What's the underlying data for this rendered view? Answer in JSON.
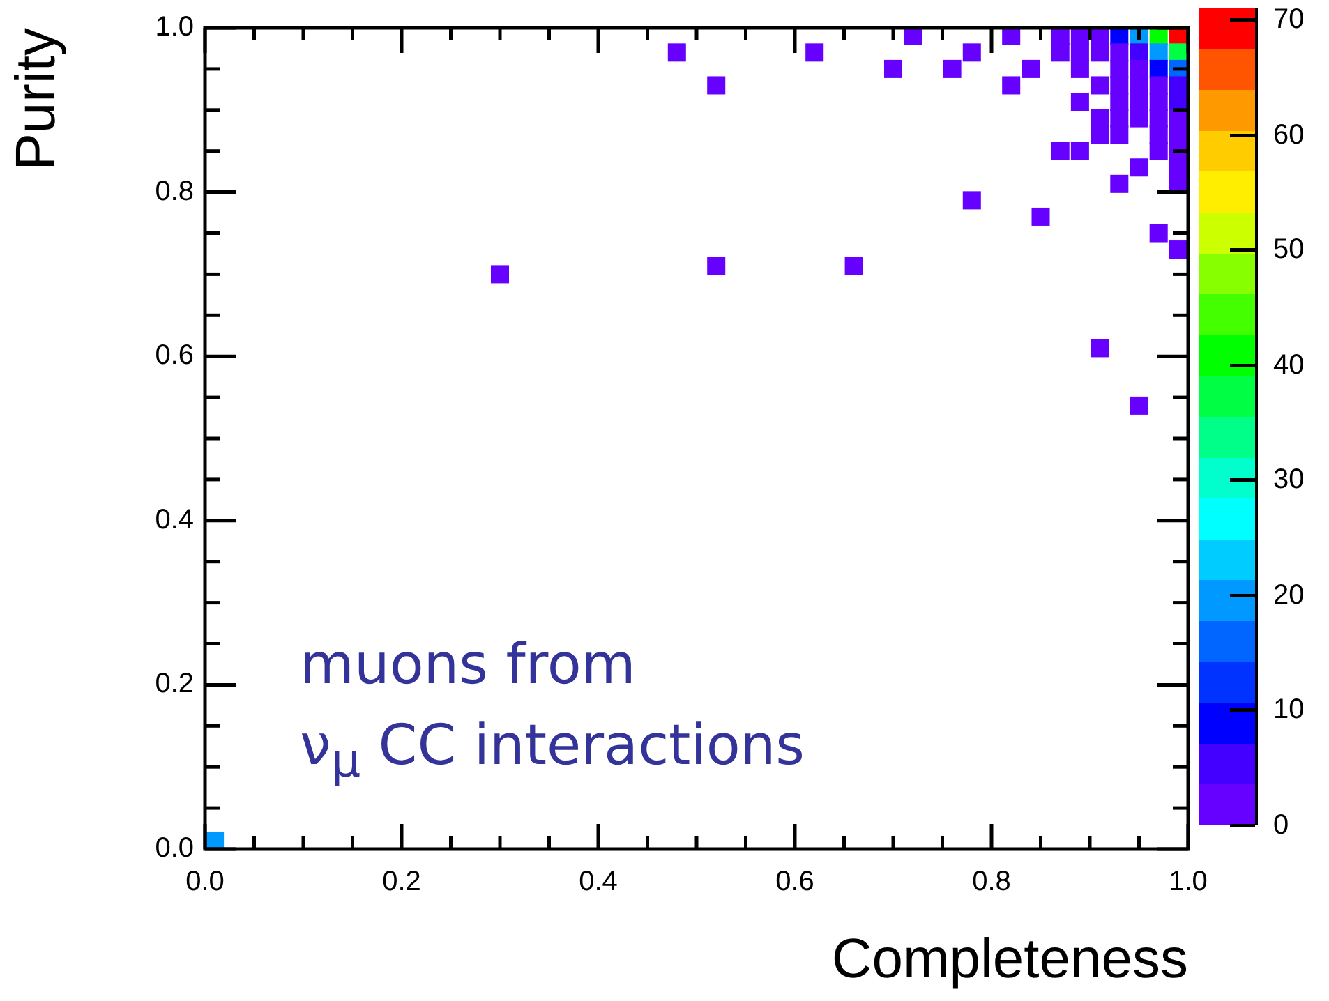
{
  "chart_data": {
    "type": "scatter",
    "xlabel": "Completeness",
    "ylabel": "Purity",
    "clabel": null,
    "annotations": [
      "muons from\nν$_{μ}$ CC interactions"
    ],
    "marker": "square",
    "legend": false,
    "grid": false,
    "xlim": [
      0,
      1
    ],
    "ylim": [
      0,
      1
    ],
    "xticks": [
      {
        "value": 0,
        "label": "0.0"
      },
      {
        "value": 0.05,
        "label": null
      },
      {
        "value": 0.1,
        "label": null
      },
      {
        "value": 0.15,
        "label": null
      },
      {
        "value": 0.2,
        "label": "0.2"
      },
      {
        "value": 0.25,
        "label": null
      },
      {
        "value": 0.3,
        "label": null
      },
      {
        "value": 0.35,
        "label": null
      },
      {
        "value": 0.4,
        "label": "0.4"
      },
      {
        "value": 0.45,
        "label": null
      },
      {
        "value": 0.5,
        "label": null
      },
      {
        "value": 0.55,
        "label": null
      },
      {
        "value": 0.6,
        "label": "0.6"
      },
      {
        "value": 0.65,
        "label": null
      },
      {
        "value": 0.7,
        "label": null
      },
      {
        "value": 0.75,
        "label": null
      },
      {
        "value": 0.8,
        "label": "0.8"
      },
      {
        "value": 0.85,
        "label": null
      },
      {
        "value": 0.9,
        "label": null
      },
      {
        "value": 0.95,
        "label": null
      },
      {
        "value": 1,
        "label": "1.0"
      }
    ],
    "yticks": [
      {
        "value": 0,
        "label": "0.0"
      },
      {
        "value": 0.05,
        "label": null
      },
      {
        "value": 0.1,
        "label": null
      },
      {
        "value": 0.15,
        "label": null
      },
      {
        "value": 0.2,
        "label": "0.2"
      },
      {
        "value": 0.25,
        "label": null
      },
      {
        "value": 0.3,
        "label": null
      },
      {
        "value": 0.35,
        "label": null
      },
      {
        "value": 0.4,
        "label": "0.4"
      },
      {
        "value": 0.45,
        "label": null
      },
      {
        "value": 0.5,
        "label": null
      },
      {
        "value": 0.55,
        "label": null
      },
      {
        "value": 0.6,
        "label": "0.6"
      },
      {
        "value": 0.65,
        "label": null
      },
      {
        "value": 0.7,
        "label": null
      },
      {
        "value": 0.75,
        "label": null
      },
      {
        "value": 0.8,
        "label": "0.8"
      },
      {
        "value": 0.85,
        "label": null
      },
      {
        "value": 0.9,
        "label": null
      },
      {
        "value": 0.95,
        "label": null
      },
      {
        "value": 1,
        "label": "1.0"
      }
    ],
    "clim": [
      0,
      71
    ],
    "cticks": [
      0,
      10,
      20,
      30,
      40,
      50,
      60,
      70
    ],
    "x": [
      0.48,
      0.52,
      0.62,
      0.72,
      0.7,
      0.78,
      0.76,
      0.82,
      0.82,
      0.84,
      0.3,
      0.52,
      0.66,
      0.78,
      0.85,
      0.97,
      0.99,
      0.91,
      0.95,
      0.01,
      0.87,
      0.89,
      0.91,
      0.93,
      0.95,
      0.97,
      0.99,
      0.87,
      0.89,
      0.91,
      0.93,
      0.95,
      0.97,
      0.99,
      0.89,
      0.93,
      0.95,
      0.97,
      0.99,
      0.91,
      0.93,
      0.95,
      0.97,
      0.99,
      0.89,
      0.93,
      0.95,
      0.97,
      0.99,
      0.91,
      0.93,
      0.95,
      0.97,
      0.99,
      0.91,
      0.93,
      0.97,
      0.99,
      0.87,
      0.89,
      0.97,
      0.99,
      0.95,
      0.99,
      0.93,
      0.99
    ],
    "values": [
      0.97,
      0.93,
      0.97,
      0.99,
      0.95,
      0.97,
      0.95,
      0.99,
      0.93,
      0.95,
      0.7,
      0.71,
      0.71,
      0.79,
      0.77,
      0.75,
      0.73,
      0.61,
      0.54,
      0.01,
      0.99,
      0.99,
      0.99,
      0.99,
      0.99,
      0.99,
      0.99,
      0.97,
      0.97,
      0.97,
      0.97,
      0.97,
      0.97,
      0.97,
      0.95,
      0.95,
      0.95,
      0.95,
      0.95,
      0.93,
      0.93,
      0.93,
      0.93,
      0.93,
      0.91,
      0.91,
      0.91,
      0.91,
      0.91,
      0.89,
      0.89,
      0.89,
      0.89,
      0.89,
      0.87,
      0.87,
      0.87,
      0.87,
      0.85,
      0.85,
      0.85,
      0.85,
      0.83,
      0.83,
      0.81,
      0.81
    ],
    "cvalues": [
      1,
      1,
      1,
      1,
      1,
      1,
      1,
      1,
      1,
      1,
      1,
      1,
      1,
      1,
      1,
      1,
      1,
      1,
      1,
      18,
      1,
      1,
      1,
      10,
      19,
      40,
      70,
      1,
      1,
      1,
      1,
      6,
      18,
      38,
      1,
      1,
      1,
      9,
      15,
      1,
      1,
      1,
      1,
      5,
      1,
      1,
      1,
      1,
      5,
      1,
      1,
      1,
      1,
      2,
      1,
      1,
      1,
      1,
      1,
      1,
      1,
      1,
      1,
      1,
      1,
      1
    ]
  }
}
